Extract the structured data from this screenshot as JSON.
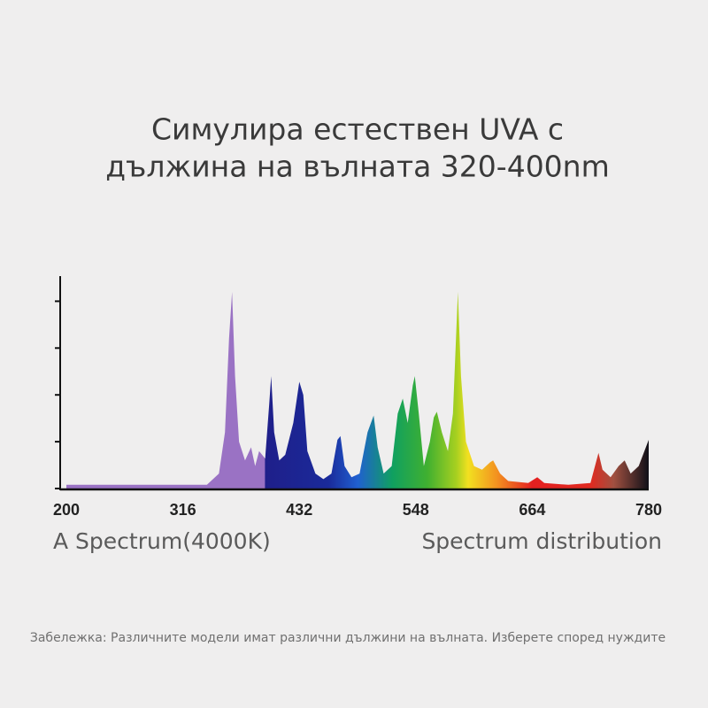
{
  "chart_data": {
    "type": "area",
    "title": [
      "Симулира естествен UVA с",
      "дължина на вълната 320-400nm"
    ],
    "x": [
      200,
      340,
      352,
      358,
      362,
      365,
      368,
      372,
      378,
      384,
      388,
      392,
      398,
      402,
      404,
      407,
      412,
      418,
      426,
      432,
      436,
      440,
      448,
      456,
      464,
      470,
      473,
      477,
      484,
      492,
      500,
      506,
      510,
      516,
      524,
      530,
      535,
      540,
      545,
      547,
      551,
      556,
      562,
      566,
      569,
      574,
      580,
      585,
      590,
      593,
      598,
      606,
      614,
      622,
      625,
      632,
      640,
      660,
      669,
      676,
      700,
      722,
      728,
      730,
      734,
      742,
      750,
      756,
      762,
      770,
      780
    ],
    "values": [
      2,
      2,
      8,
      30,
      80,
      105,
      60,
      25,
      15,
      22,
      12,
      20,
      16,
      45,
      60,
      30,
      15,
      18,
      35,
      57,
      50,
      20,
      8,
      5,
      8,
      26,
      28,
      12,
      6,
      8,
      30,
      39,
      22,
      8,
      12,
      40,
      48,
      35,
      55,
      60,
      40,
      12,
      25,
      38,
      41,
      30,
      20,
      40,
      105,
      60,
      25,
      12,
      10,
      14,
      15,
      8,
      4,
      3,
      6,
      3,
      2,
      3,
      15,
      19,
      10,
      6,
      12,
      15,
      8,
      12,
      26
    ],
    "xlim": [
      200,
      780
    ],
    "xticks": [
      200,
      316,
      432,
      548,
      664,
      780
    ],
    "ylim": [
      0,
      112
    ],
    "yticks": [
      0,
      25,
      50,
      75,
      100
    ],
    "left_caption": "A Spectrum(4000K)",
    "right_caption": "Spectrum distribution",
    "note": "Забележка: Различните модели имат различни дължини на вълната. Изберете според нуждите"
  }
}
